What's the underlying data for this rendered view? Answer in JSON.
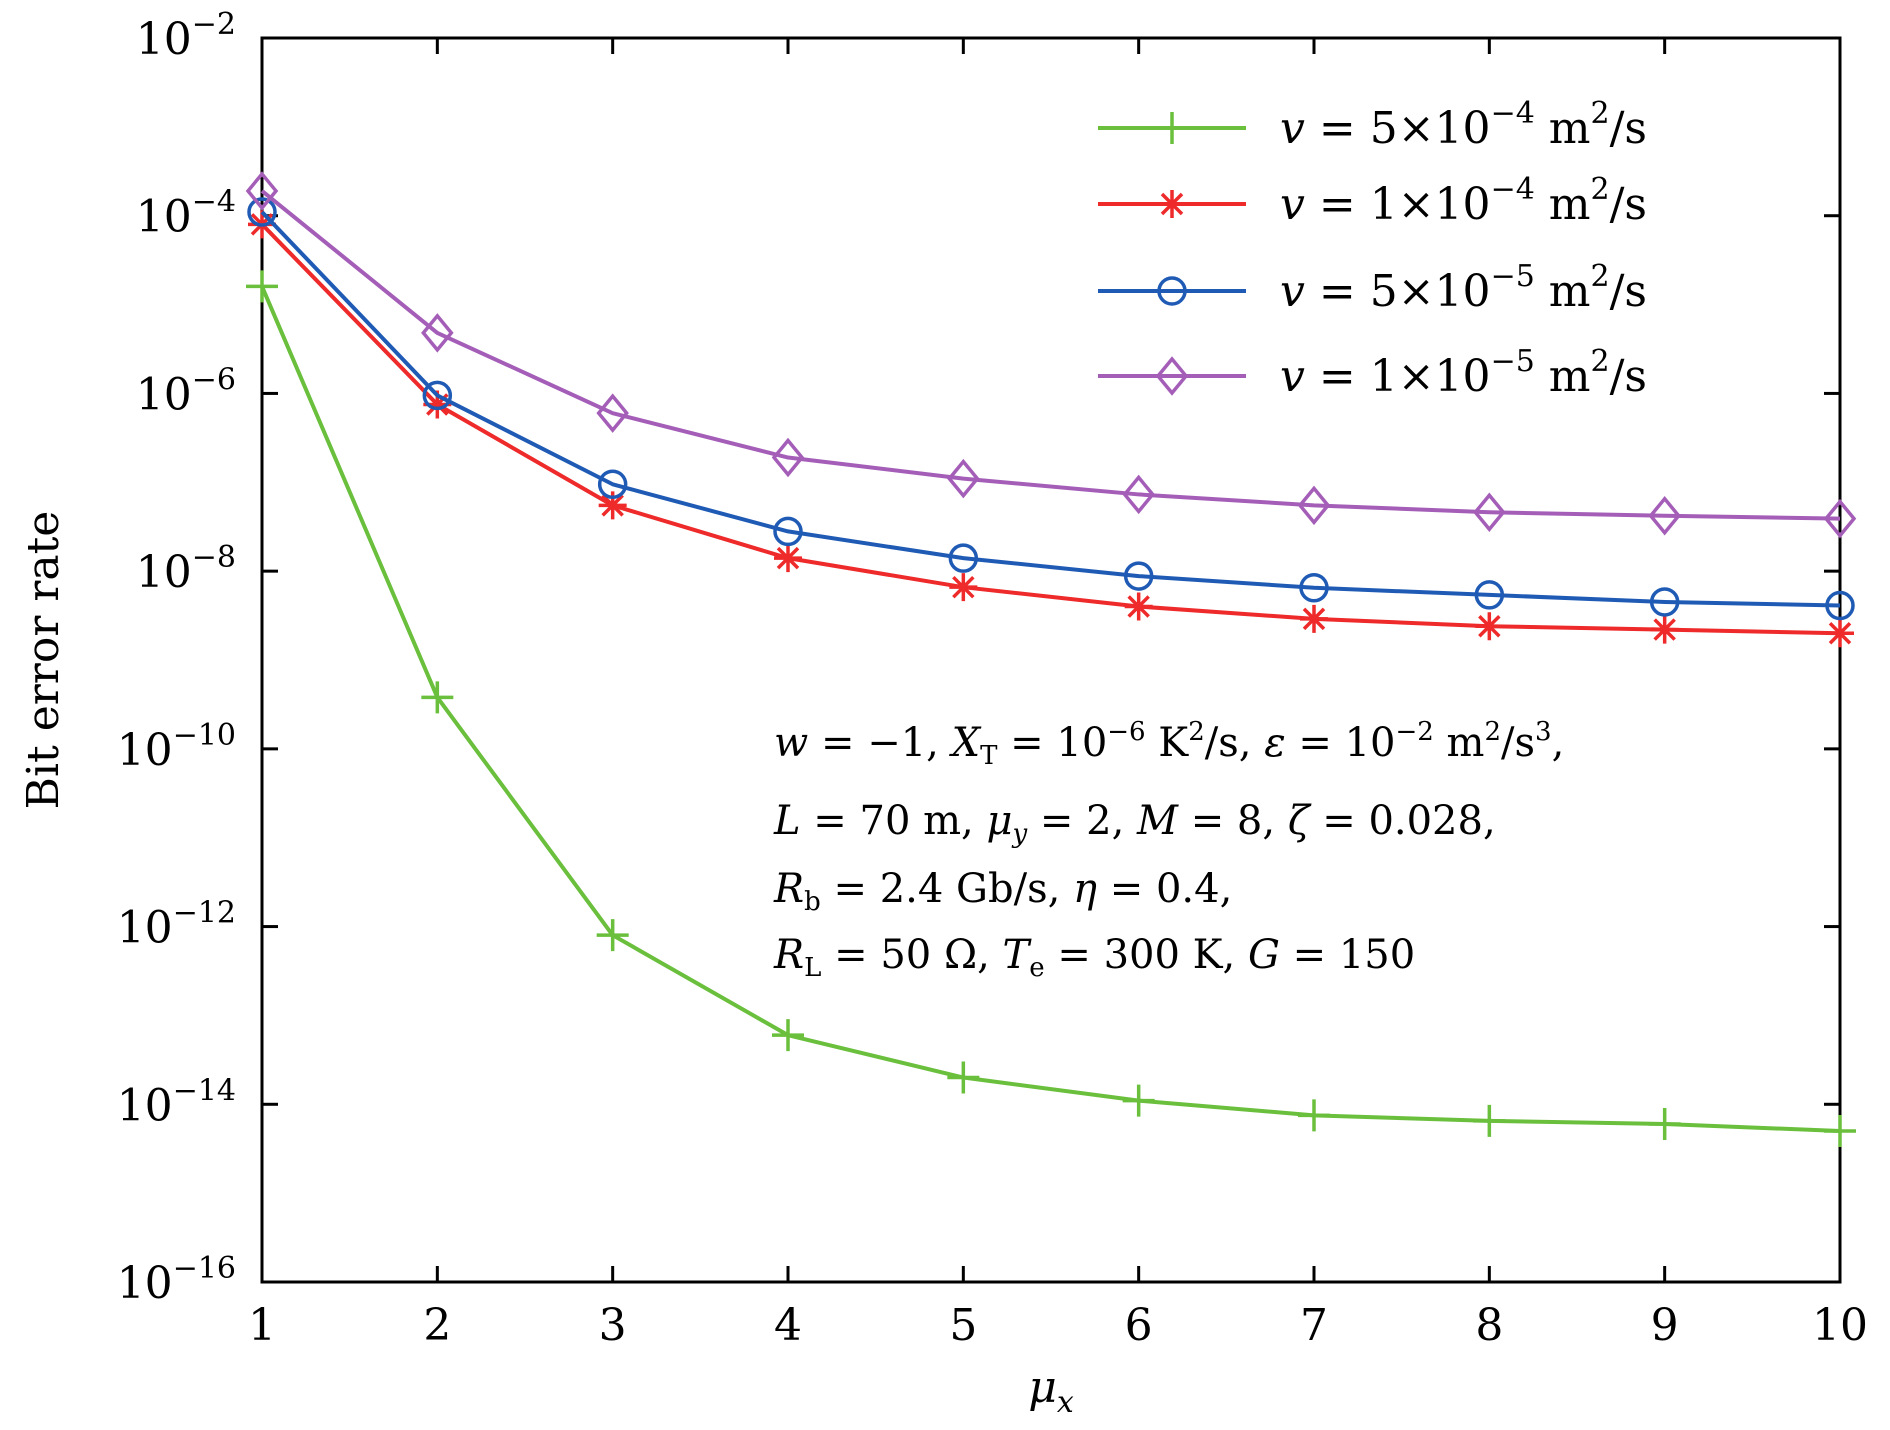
{
  "chart_data": {
    "type": "line",
    "xlabel": "μx",
    "ylabel": "Bit error rate",
    "xlim": [
      1,
      10
    ],
    "ylim": [
      1e-16,
      0.01
    ],
    "y_scale": "log",
    "x_ticks": [
      "1",
      "2",
      "3",
      "4",
      "5",
      "6",
      "7",
      "8",
      "9",
      "10"
    ],
    "y_ticks": [
      {
        "base": "10",
        "exp": "−2",
        "value": -2
      },
      {
        "base": "10",
        "exp": "−4",
        "value": -4
      },
      {
        "base": "10",
        "exp": "−6",
        "value": -6
      },
      {
        "base": "10",
        "exp": "−8",
        "value": -8
      },
      {
        "base": "10",
        "exp": "−10",
        "value": -10
      },
      {
        "base": "10",
        "exp": "−12",
        "value": -12
      },
      {
        "base": "10",
        "exp": "−14",
        "value": -14
      },
      {
        "base": "10",
        "exp": "−16",
        "value": -16
      }
    ],
    "legend_position": "top-right",
    "x": [
      1,
      2,
      3,
      4,
      5,
      6,
      7,
      8,
      9,
      10
    ],
    "series": [
      {
        "name": "v = 5×10−4 m2/s",
        "color": "#6abf3c",
        "marker": "plus",
        "values": [
          1.6e-05,
          3.8e-10,
          8e-13,
          6e-14,
          2e-14,
          1.1e-14,
          7.5e-15,
          6.5e-15,
          6e-15,
          5e-15
        ]
      },
      {
        "name": "v = 1×10−4 m2/s",
        "color": "#ee2a2a",
        "marker": "asterisk",
        "values": [
          8e-05,
          7.5e-07,
          5.5e-08,
          1.4e-08,
          6.6e-09,
          4e-09,
          2.9e-09,
          2.4e-09,
          2.2e-09,
          2e-09
        ]
      },
      {
        "name": "v = 5×10−5 m2/s",
        "color": "#1f5bb5",
        "marker": "circle",
        "values": [
          0.00011,
          9.5e-07,
          9.5e-08,
          2.8e-08,
          1.4e-08,
          8.8e-09,
          6.5e-09,
          5.4e-09,
          4.5e-09,
          4.1e-09
        ]
      },
      {
        "name": "v = 1×10−5 m2/s",
        "color": "#a45eb8",
        "marker": "diamond",
        "values": [
          0.00019,
          4.8e-06,
          6e-07,
          1.9e-07,
          1.1e-07,
          7.3e-08,
          5.5e-08,
          4.6e-08,
          4.2e-08,
          3.9e-08
        ]
      }
    ],
    "legend": [
      {
        "pre": "v = 5×10",
        "exp": "−4",
        "mid": " m",
        "exp2": "2",
        "post": "/s"
      },
      {
        "pre": "v = 1×10",
        "exp": "−4",
        "mid": " m",
        "exp2": "2",
        "post": "/s"
      },
      {
        "pre": "v = 5×10",
        "exp": "−5",
        "mid": " m",
        "exp2": "2",
        "post": "/s"
      },
      {
        "pre": "v = 1×10",
        "exp": "−5",
        "mid": " m",
        "exp2": "2",
        "post": "/s"
      }
    ],
    "annotation_lines": [
      "w = −1, XT = 10−6 K2/s, ε = 10−2 m2/s3,",
      "L = 70 m, μy = 2, M = 8, ζ = 0.028,",
      "Rb = 2.4 Gb/s, η = 0.4,",
      "RL = 50 Ω, Te = 300 K, G = 150"
    ]
  }
}
